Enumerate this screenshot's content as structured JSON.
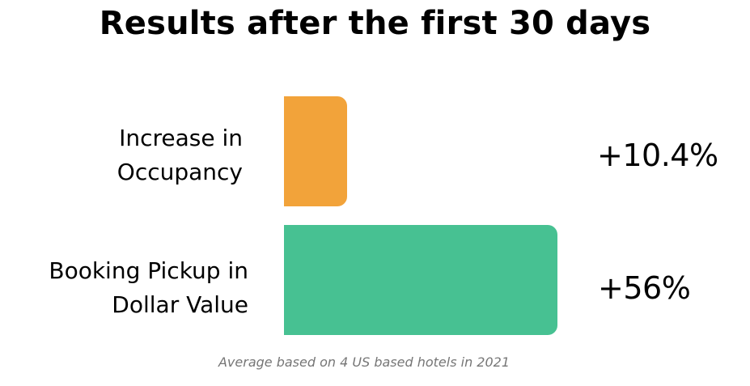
{
  "chart_data": {
    "type": "bar",
    "orientation": "horizontal",
    "title": "Results after the first 30 days",
    "categories": [
      "Increase in\nOccupancy",
      "Booking  Pickup in\nDollar Value"
    ],
    "values": [
      10.4,
      56
    ],
    "value_labels": [
      "+10.4%",
      "+56%"
    ],
    "colors": [
      "#F2A33A",
      "#47C192"
    ],
    "xlabel": "",
    "ylabel": "",
    "grid": false
  },
  "footnote": "Average based on 4 US based hotels in 2021"
}
